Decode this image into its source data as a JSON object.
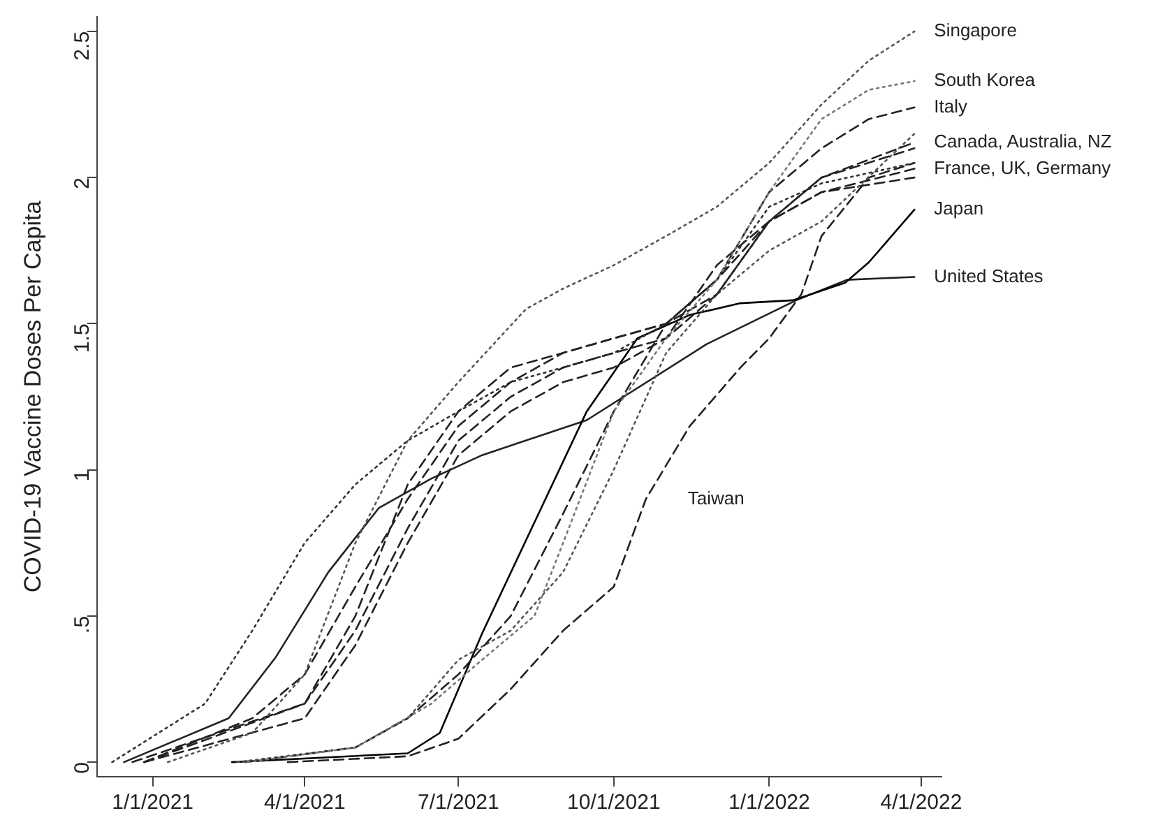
{
  "chart_data": {
    "type": "line",
    "ylabel": "COVID-19 Vaccine Doses Per Capita",
    "xlim": [
      "2020-11-29",
      "2022-04-13"
    ],
    "xticks": [
      {
        "value": "2021-01-01",
        "label": "1/1/2021"
      },
      {
        "value": "2021-04-01",
        "label": "4/1/2021"
      },
      {
        "value": "2021-07-01",
        "label": "7/1/2021"
      },
      {
        "value": "2021-10-01",
        "label": "10/1/2021"
      },
      {
        "value": "2022-01-01",
        "label": "1/1/2022"
      },
      {
        "value": "2022-04-01",
        "label": "4/1/2022"
      }
    ],
    "ylim": [
      -0.05,
      2.55
    ],
    "yticks": [
      0,
      {
        "value": 0.5,
        "label": ".5"
      },
      1,
      1.5,
      2,
      2.5
    ],
    "grid": false,
    "legend": false,
    "marker": "none",
    "annotations": [
      {
        "text": "Canada, Australia, NZ",
        "x": "2022-03-28",
        "y": 2.12
      },
      {
        "text": "France, UK, Germany",
        "x": "2022-03-28",
        "y": 2.03
      }
    ],
    "series": [
      {
        "name": "Singapore",
        "color": "#555555",
        "line_style": "dotted",
        "x": [
          "2021-01-10",
          "2021-03-01",
          "2021-04-01",
          "2021-05-01",
          "2021-06-01",
          "2021-07-01",
          "2021-08-10",
          "2021-09-01",
          "2021-10-01",
          "2021-11-01",
          "2021-12-01",
          "2022-01-01",
          "2022-02-01",
          "2022-03-01",
          "2022-03-28"
        ],
        "values": [
          0,
          0.1,
          0.3,
          0.75,
          1.1,
          1.3,
          1.55,
          1.62,
          1.7,
          1.8,
          1.9,
          2.05,
          2.25,
          2.4,
          2.5
        ]
      },
      {
        "name": "South Korea",
        "color": "#777777",
        "line_style": "dotted",
        "x": [
          "2021-02-26",
          "2021-05-01",
          "2021-06-15",
          "2021-07-15",
          "2021-08-15",
          "2021-09-01",
          "2021-10-01",
          "2021-11-01",
          "2021-12-01",
          "2022-01-01",
          "2022-02-01",
          "2022-03-01",
          "2022-03-28"
        ],
        "values": [
          0,
          0.05,
          0.2,
          0.35,
          0.5,
          0.75,
          1.2,
          1.45,
          1.65,
          1.95,
          2.2,
          2.3,
          2.33
        ]
      },
      {
        "name": "Italy",
        "color": "#222222",
        "line_style": "dashed",
        "x": [
          "2020-12-27",
          "2021-03-01",
          "2021-04-01",
          "2021-05-01",
          "2021-06-01",
          "2021-07-01",
          "2021-08-01",
          "2021-09-01",
          "2021-10-01",
          "2021-11-01",
          "2021-12-01",
          "2022-01-01",
          "2022-02-01",
          "2022-03-01",
          "2022-03-28"
        ],
        "values": [
          0,
          0.15,
          0.3,
          0.6,
          0.9,
          1.15,
          1.3,
          1.4,
          1.45,
          1.5,
          1.65,
          1.95,
          2.1,
          2.2,
          2.24
        ]
      },
      {
        "color": "#222222",
        "line_style": "dashed",
        "x": [
          "2020-12-20",
          "2021-04-01",
          "2021-05-01",
          "2021-06-01",
          "2021-07-01",
          "2021-08-01",
          "2021-09-01",
          "2021-10-01",
          "2021-11-01",
          "2021-12-01",
          "2022-01-01",
          "2022-02-01",
          "2022-03-28"
        ],
        "values": [
          0,
          0.2,
          0.5,
          0.95,
          1.2,
          1.35,
          1.4,
          1.45,
          1.5,
          1.6,
          1.85,
          2.0,
          2.12
        ]
      },
      {
        "color": "#222222",
        "line_style": "dashed",
        "x": [
          "2021-02-25",
          "2021-05-01",
          "2021-06-01",
          "2021-07-01",
          "2021-08-01",
          "2021-09-01",
          "2021-10-01",
          "2021-11-01",
          "2021-12-01",
          "2022-01-01",
          "2022-02-01",
          "2022-03-28"
        ],
        "values": [
          0,
          0.05,
          0.15,
          0.3,
          0.5,
          0.85,
          1.2,
          1.5,
          1.65,
          1.85,
          2.0,
          2.1
        ]
      },
      {
        "color": "#555555",
        "line_style": "dotted",
        "x": [
          "2021-02-20",
          "2021-05-01",
          "2021-06-01",
          "2021-07-01",
          "2021-08-01",
          "2021-09-01",
          "2021-10-01",
          "2021-11-01",
          "2021-12-01",
          "2022-01-01",
          "2022-02-01",
          "2022-03-28"
        ],
        "values": [
          0,
          0.05,
          0.15,
          0.35,
          0.45,
          0.65,
          1.0,
          1.4,
          1.6,
          1.75,
          1.85,
          2.15
        ]
      },
      {
        "color": "#222222",
        "line_style": "dashed",
        "x": [
          "2020-12-27",
          "2021-04-01",
          "2021-05-01",
          "2021-06-01",
          "2021-07-01",
          "2021-08-01",
          "2021-09-01",
          "2021-10-01",
          "2021-11-01",
          "2021-12-01",
          "2022-01-01",
          "2022-02-01",
          "2022-03-28"
        ],
        "values": [
          0,
          0.2,
          0.45,
          0.8,
          1.1,
          1.25,
          1.35,
          1.4,
          1.45,
          1.6,
          1.85,
          1.95,
          2.03
        ]
      },
      {
        "color": "#333333",
        "line_style": "dotted",
        "x": [
          "2020-12-08",
          "2021-02-01",
          "2021-03-01",
          "2021-04-01",
          "2021-05-01",
          "2021-06-01",
          "2021-07-01",
          "2021-08-01",
          "2021-09-01",
          "2021-10-01",
          "2021-11-01",
          "2021-12-01",
          "2022-01-01",
          "2022-02-01",
          "2022-03-28"
        ],
        "values": [
          0,
          0.2,
          0.45,
          0.75,
          0.95,
          1.1,
          1.2,
          1.3,
          1.35,
          1.4,
          1.5,
          1.65,
          1.9,
          1.98,
          2.05
        ]
      },
      {
        "color": "#222222",
        "line_style": "dashed",
        "x": [
          "2020-12-27",
          "2021-04-01",
          "2021-05-01",
          "2021-06-01",
          "2021-07-01",
          "2021-08-01",
          "2021-09-01",
          "2021-10-01",
          "2021-11-01",
          "2021-12-01",
          "2022-01-01",
          "2022-02-01",
          "2022-03-28"
        ],
        "values": [
          0,
          0.15,
          0.4,
          0.75,
          1.05,
          1.2,
          1.3,
          1.35,
          1.45,
          1.7,
          1.85,
          1.95,
          2.0
        ]
      },
      {
        "name": "Japan",
        "color": "#000000",
        "line_style": "solid",
        "x": [
          "2021-02-17",
          "2021-06-01",
          "2021-06-20",
          "2021-07-15",
          "2021-08-15",
          "2021-09-15",
          "2021-10-15",
          "2021-11-15",
          "2021-12-15",
          "2022-01-15",
          "2022-02-15",
          "2022-03-01",
          "2022-03-28"
        ],
        "values": [
          0,
          0.03,
          0.1,
          0.44,
          0.82,
          1.2,
          1.45,
          1.53,
          1.57,
          1.58,
          1.64,
          1.71,
          1.89
        ]
      },
      {
        "name": "United States",
        "color": "#222222",
        "line_style": "solid",
        "x": [
          "2020-12-15",
          "2021-02-15",
          "2021-03-15",
          "2021-04-15",
          "2021-05-15",
          "2021-06-15",
          "2021-07-15",
          "2021-09-15",
          "2021-11-25",
          "2022-01-17",
          "2022-02-16",
          "2022-03-28"
        ],
        "values": [
          0,
          0.15,
          0.36,
          0.65,
          0.87,
          0.97,
          1.05,
          1.17,
          1.43,
          1.58,
          1.65,
          1.66
        ]
      },
      {
        "name": "Taiwan",
        "color": "#222222",
        "line_style": "dashed",
        "x": [
          "2021-03-22",
          "2021-06-01",
          "2021-07-01",
          "2021-08-01",
          "2021-09-01",
          "2021-10-01",
          "2021-10-20",
          "2021-11-15",
          "2021-12-15",
          "2022-01-01",
          "2022-01-20",
          "2022-02-01",
          "2022-03-01",
          "2022-03-28"
        ],
        "values": [
          0,
          0.02,
          0.08,
          0.25,
          0.45,
          0.6,
          0.9,
          1.15,
          1.35,
          1.45,
          1.6,
          1.8,
          2.0,
          2.05
        ]
      }
    ]
  }
}
